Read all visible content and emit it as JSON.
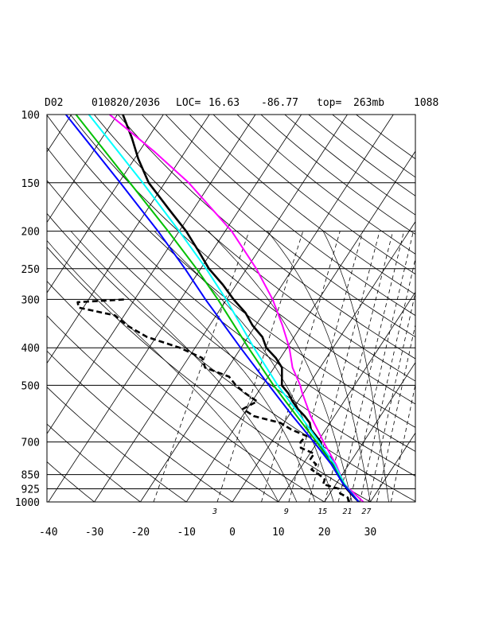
{
  "chart_data": {
    "type": "line",
    "subtype": "skew-t log-p sounding",
    "header": {
      "id": "D02",
      "datetime": "010820/2036",
      "loc_label": "LOC=",
      "lat": "16.63",
      "lon": "-86.77",
      "top_label": "top=",
      "top_value": "263mb",
      "number": "1088"
    },
    "pressure_levels": [
      100,
      150,
      200,
      250,
      300,
      400,
      500,
      700,
      850,
      925,
      1000
    ],
    "pressure_labels": [
      "100",
      "150",
      "200",
      "250",
      "300",
      "400",
      "500",
      "700",
      "850",
      "925",
      "1000"
    ],
    "x_ticks": [
      -40,
      -30,
      -20,
      -10,
      0,
      10,
      20,
      30
    ],
    "x_tick_labels": [
      "-40",
      "-30",
      "-20",
      "-10",
      "0",
      "10",
      "20",
      "30"
    ],
    "mixing_ratio_labels": [
      "3",
      "9",
      "15",
      "21",
      "27"
    ],
    "xlim": [
      -40,
      40
    ],
    "ylim": [
      1000,
      100
    ],
    "skew_degrees_per_decade": 55,
    "grid": true,
    "colors": {
      "temperature": "#000000",
      "dewpoint": "#000000",
      "parcel_magenta": "#ff00ff",
      "parcel_cyan": "#00ffff",
      "parcel_green": "#00c000",
      "parcel_blue": "#0000ff"
    },
    "series": [
      {
        "key": "temperature",
        "style": "solid",
        "points": [
          [
            1000,
            27.5
          ],
          [
            975,
            26
          ],
          [
            950,
            24.5
          ],
          [
            925,
            23
          ],
          [
            900,
            21.8
          ],
          [
            875,
            20.5
          ],
          [
            850,
            19.5
          ],
          [
            825,
            18
          ],
          [
            800,
            16.5
          ],
          [
            775,
            15.6
          ],
          [
            750,
            13.4
          ],
          [
            725,
            11.8
          ],
          [
            700,
            10.7
          ],
          [
            675,
            8.8
          ],
          [
            650,
            6.8
          ],
          [
            625,
            5.6
          ],
          [
            600,
            3.5
          ],
          [
            575,
            1.0
          ],
          [
            550,
            -1.2
          ],
          [
            525,
            -3.2
          ],
          [
            500,
            -5.8
          ],
          [
            475,
            -7
          ],
          [
            450,
            -8.3
          ],
          [
            425,
            -11.0
          ],
          [
            400,
            -14.5
          ],
          [
            375,
            -16.9
          ],
          [
            350,
            -20.7
          ],
          [
            325,
            -24.0
          ],
          [
            300,
            -28.5
          ],
          [
            275,
            -32.9
          ],
          [
            250,
            -38.2
          ],
          [
            225,
            -43.0
          ],
          [
            200,
            -48.5
          ],
          [
            175,
            -55.5
          ],
          [
            150,
            -63.5
          ],
          [
            130,
            -69.2
          ],
          [
            115,
            -73.5
          ],
          [
            100,
            -78.8
          ]
        ]
      },
      {
        "key": "dewpoint",
        "style": "dashed",
        "points": [
          [
            1000,
            25.3
          ],
          [
            975,
            24.5
          ],
          [
            950,
            22.2
          ],
          [
            925,
            21.3
          ],
          [
            900,
            17.2
          ],
          [
            875,
            16.9
          ],
          [
            850,
            15
          ],
          [
            825,
            12.6
          ],
          [
            800,
            12.9
          ],
          [
            775,
            10.9
          ],
          [
            750,
            10.9
          ],
          [
            725,
            7.2
          ],
          [
            700,
            6.3
          ],
          [
            675,
            6.7
          ],
          [
            650,
            2.5
          ],
          [
            625,
            -0.8
          ],
          [
            600,
            -7.6
          ],
          [
            575,
            -10.9
          ],
          [
            550,
            -8.9
          ],
          [
            525,
            -12.5
          ],
          [
            500,
            -15.8
          ],
          [
            475,
            -18.5
          ],
          [
            450,
            -25
          ],
          [
            425,
            -27
          ],
          [
            400,
            -33.3
          ],
          [
            375,
            -42
          ],
          [
            350,
            -48
          ],
          [
            330,
            -52
          ],
          [
            315,
            -61
          ],
          [
            305,
            -62
          ],
          [
            300,
            -52
          ]
        ]
      },
      {
        "key": "parcel_magenta",
        "style": "solid",
        "points": [
          [
            1000,
            28.5
          ],
          [
            900,
            21.8
          ],
          [
            800,
            17.2
          ],
          [
            700,
            11.3
          ],
          [
            600,
            4.8
          ],
          [
            520,
            -0.5
          ],
          [
            500,
            -1.8
          ],
          [
            450,
            -6.0
          ],
          [
            400,
            -9.5
          ],
          [
            350,
            -14.2
          ],
          [
            300,
            -20.0
          ],
          [
            250,
            -27.9
          ],
          [
            200,
            -38.6
          ],
          [
            150,
            -54.8
          ],
          [
            125,
            -66.5
          ],
          [
            100,
            -81.7
          ]
        ]
      },
      {
        "key": "parcel_cyan",
        "style": "solid",
        "points": [
          [
            1000,
            27.5
          ],
          [
            900,
            21.9
          ],
          [
            800,
            16.9
          ],
          [
            700,
            10.3
          ],
          [
            600,
            2.6
          ],
          [
            500,
            -6.7
          ],
          [
            400,
            -17.2
          ],
          [
            300,
            -30.1
          ],
          [
            250,
            -38.8
          ],
          [
            200,
            -50.0
          ],
          [
            150,
            -64.8
          ],
          [
            100,
            -86.2
          ]
        ]
      },
      {
        "key": "parcel_green",
        "style": "solid",
        "points": [
          [
            1000,
            27.5
          ],
          [
            900,
            21.7
          ],
          [
            800,
            16.4
          ],
          [
            700,
            9.8
          ],
          [
            600,
            1.8
          ],
          [
            500,
            -7.6
          ],
          [
            400,
            -18.4
          ],
          [
            300,
            -31.9
          ],
          [
            250,
            -40.9
          ],
          [
            200,
            -52.4
          ],
          [
            150,
            -67.6
          ],
          [
            100,
            -89.0
          ]
        ]
      },
      {
        "key": "parcel_blue",
        "style": "solid",
        "points": [
          [
            1000,
            27.5
          ],
          [
            900,
            21.6
          ],
          [
            800,
            16.2
          ],
          [
            700,
            9.2
          ],
          [
            600,
            0.9
          ],
          [
            500,
            -8.6
          ],
          [
            400,
            -20.1
          ],
          [
            300,
            -34.6
          ],
          [
            250,
            -43.4
          ],
          [
            200,
            -54.6
          ],
          [
            150,
            -69.7
          ],
          [
            100,
            -91.2
          ]
        ]
      }
    ]
  }
}
